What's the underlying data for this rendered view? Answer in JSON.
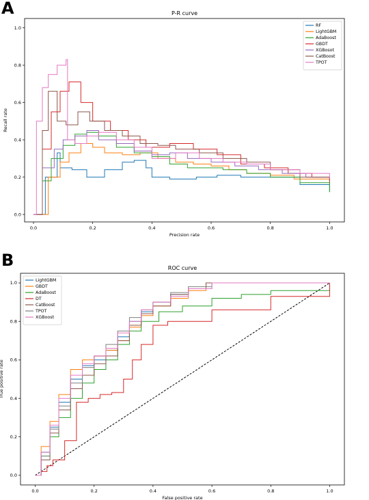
{
  "chart_data": [
    {
      "panel_label": "A",
      "type": "line",
      "title": "P-R curve",
      "xlabel": "Precision rate",
      "ylabel": "Recall rate",
      "xlim": [
        -0.03,
        1.05
      ],
      "ylim": [
        -0.04,
        1.05
      ],
      "xticks": [
        0.0,
        0.2,
        0.4,
        0.6,
        0.8,
        1.0
      ],
      "yticks": [
        0.0,
        0.2,
        0.4,
        0.6,
        0.8,
        1.0
      ],
      "xtick_labels": [
        "0.0",
        "0.2",
        "0.4",
        "0.6",
        "0.8",
        "1.0"
      ],
      "ytick_labels": [
        "0.0",
        "0.2",
        "0.4",
        "0.6",
        "0.8",
        "1.0"
      ],
      "grid": false,
      "legend_position": "top-right",
      "series": [
        {
          "name": "RF",
          "color": "#1f77b4",
          "x": [
            0.0,
            0.04,
            0.08,
            0.09,
            0.12,
            0.13,
            0.18,
            0.24,
            0.3,
            0.34,
            0.38,
            0.4,
            0.46,
            0.55,
            0.62,
            0.7,
            0.8,
            0.9,
            1.0
          ],
          "y": [
            0.0,
            0.2,
            0.33,
            0.25,
            0.25,
            0.24,
            0.2,
            0.24,
            0.28,
            0.29,
            0.25,
            0.2,
            0.19,
            0.2,
            0.21,
            0.2,
            0.2,
            0.16,
            0.12
          ]
        },
        {
          "name": "LightGBM",
          "color": "#ff7f0e",
          "x": [
            0.0,
            0.05,
            0.09,
            0.12,
            0.16,
            0.2,
            0.24,
            0.3,
            0.36,
            0.42,
            0.48,
            0.54,
            0.6,
            0.66,
            0.72,
            0.8,
            0.88,
            1.0
          ],
          "y": [
            0.0,
            0.2,
            0.28,
            0.33,
            0.38,
            0.36,
            0.33,
            0.32,
            0.33,
            0.3,
            0.28,
            0.27,
            0.26,
            0.24,
            0.22,
            0.21,
            0.19,
            0.16
          ]
        },
        {
          "name": "AdaBoost",
          "color": "#2ca02c",
          "x": [
            0.0,
            0.03,
            0.06,
            0.1,
            0.14,
            0.18,
            0.22,
            0.28,
            0.34,
            0.4,
            0.46,
            0.52,
            0.58,
            0.64,
            0.72,
            0.8,
            0.9,
            1.0
          ],
          "y": [
            0.0,
            0.18,
            0.3,
            0.37,
            0.43,
            0.44,
            0.42,
            0.36,
            0.33,
            0.31,
            0.27,
            0.25,
            0.25,
            0.24,
            0.22,
            0.2,
            0.17,
            0.12
          ]
        },
        {
          "name": "GBDT",
          "color": "#d62728",
          "x": [
            0.0,
            0.03,
            0.06,
            0.09,
            0.12,
            0.16,
            0.2,
            0.26,
            0.32,
            0.38,
            0.46,
            0.54,
            0.62,
            0.7,
            0.78,
            0.86,
            0.94,
            1.0
          ],
          "y": [
            0.0,
            0.35,
            0.55,
            0.66,
            0.71,
            0.6,
            0.5,
            0.45,
            0.4,
            0.36,
            0.38,
            0.35,
            0.32,
            0.27,
            0.25,
            0.22,
            0.2,
            0.18
          ]
        },
        {
          "name": "XGBosot",
          "color": "#9467bd",
          "x": [
            0.0,
            0.03,
            0.07,
            0.1,
            0.14,
            0.18,
            0.22,
            0.28,
            0.34,
            0.4,
            0.46,
            0.52,
            0.6,
            0.68,
            0.76,
            0.84,
            0.92,
            1.0
          ],
          "y": [
            0.0,
            0.25,
            0.35,
            0.4,
            0.42,
            0.45,
            0.4,
            0.38,
            0.34,
            0.32,
            0.33,
            0.3,
            0.28,
            0.26,
            0.24,
            0.22,
            0.2,
            0.19
          ]
        },
        {
          "name": "CatBoost",
          "color": "#8c564b",
          "x": [
            0.0,
            0.03,
            0.05,
            0.08,
            0.11,
            0.15,
            0.19,
            0.24,
            0.3,
            0.36,
            0.42,
            0.48,
            0.56,
            0.64,
            0.72,
            0.8,
            0.9,
            1.0
          ],
          "y": [
            0.0,
            0.45,
            0.66,
            0.5,
            0.48,
            0.55,
            0.5,
            0.45,
            0.42,
            0.38,
            0.37,
            0.35,
            0.33,
            0.3,
            0.28,
            0.24,
            0.2,
            0.17
          ]
        },
        {
          "name": "TPOT",
          "color": "#e377c2",
          "x": [
            0.0,
            0.01,
            0.03,
            0.05,
            0.08,
            0.11,
            0.115,
            0.14,
            0.18,
            0.22,
            0.28,
            0.34,
            0.4,
            0.48,
            0.56,
            0.64,
            0.72,
            0.8,
            0.9,
            1.0
          ],
          "y": [
            0.0,
            0.5,
            0.68,
            0.75,
            0.8,
            0.83,
            0.4,
            0.38,
            0.42,
            0.44,
            0.4,
            0.36,
            0.3,
            0.33,
            0.3,
            0.28,
            0.27,
            0.24,
            0.22,
            0.19
          ]
        }
      ]
    },
    {
      "panel_label": "B",
      "type": "line",
      "title": "ROC curve",
      "xlabel": "False positive rate",
      "ylabel": "True positive rate",
      "xlim": [
        -0.05,
        1.05
      ],
      "ylim": [
        -0.05,
        1.05
      ],
      "xticks": [
        0.0,
        0.2,
        0.4,
        0.6,
        0.8,
        1.0
      ],
      "yticks": [
        0.0,
        0.2,
        0.4,
        0.6,
        0.8,
        1.0
      ],
      "xtick_labels": [
        "0.0",
        "0.2",
        "0.4",
        "0.6",
        "0.8",
        "1.0"
      ],
      "ytick_labels": [
        "0.0",
        "0.2",
        "0.4",
        "0.6",
        "0.8",
        "1.0"
      ],
      "grid": false,
      "legend_position": "top-left",
      "diagonal": {
        "x": [
          0,
          1
        ],
        "y": [
          0,
          1
        ],
        "color": "#000000",
        "style": "dashed"
      },
      "series": [
        {
          "name": "LightGBM",
          "color": "#1f77b4",
          "x": [
            0.0,
            0.02,
            0.05,
            0.08,
            0.12,
            0.16,
            0.2,
            0.24,
            0.28,
            0.32,
            0.36,
            0.4,
            0.46,
            0.52,
            0.6,
            0.7,
            1.0
          ],
          "y": [
            0.0,
            0.12,
            0.25,
            0.38,
            0.5,
            0.57,
            0.6,
            0.65,
            0.72,
            0.8,
            0.85,
            0.9,
            0.94,
            0.97,
            1.0,
            1.0,
            1.0
          ]
        },
        {
          "name": "GBDT",
          "color": "#ff7f0e",
          "x": [
            0.0,
            0.02,
            0.05,
            0.08,
            0.12,
            0.16,
            0.2,
            0.24,
            0.28,
            0.32,
            0.36,
            0.4,
            0.46,
            0.52,
            0.58,
            0.7,
            1.0
          ],
          "y": [
            0.0,
            0.15,
            0.28,
            0.42,
            0.55,
            0.6,
            0.62,
            0.65,
            0.7,
            0.77,
            0.83,
            0.88,
            0.92,
            0.96,
            1.0,
            1.0,
            1.0
          ]
        },
        {
          "name": "AdaBoost",
          "color": "#2ca02c",
          "x": [
            0.0,
            0.02,
            0.05,
            0.08,
            0.12,
            0.16,
            0.2,
            0.24,
            0.28,
            0.32,
            0.36,
            0.42,
            0.5,
            0.6,
            0.7,
            0.8,
            1.0
          ],
          "y": [
            0.0,
            0.1,
            0.2,
            0.3,
            0.4,
            0.48,
            0.55,
            0.6,
            0.68,
            0.75,
            0.8,
            0.85,
            0.88,
            0.92,
            0.94,
            0.96,
            1.0
          ]
        },
        {
          "name": "DT",
          "color": "#d62728",
          "x": [
            0.0,
            0.02,
            0.04,
            0.06,
            0.1,
            0.14,
            0.18,
            0.22,
            0.26,
            0.3,
            0.33,
            0.36,
            0.4,
            0.45,
            0.6,
            0.8,
            1.0
          ],
          "y": [
            0.0,
            0.02,
            0.05,
            0.08,
            0.18,
            0.38,
            0.4,
            0.42,
            0.43,
            0.5,
            0.6,
            0.68,
            0.78,
            0.8,
            0.86,
            0.93,
            1.0
          ]
        },
        {
          "name": "CatBoost",
          "color": "#8c564b",
          "x": [
            0.0,
            0.02,
            0.05,
            0.08,
            0.12,
            0.16,
            0.2,
            0.24,
            0.28,
            0.32,
            0.36,
            0.4,
            0.46,
            0.52,
            0.58,
            0.7,
            1.0
          ],
          "y": [
            0.0,
            0.08,
            0.22,
            0.34,
            0.45,
            0.52,
            0.58,
            0.62,
            0.7,
            0.78,
            0.84,
            0.88,
            0.94,
            0.97,
            1.0,
            1.0,
            1.0
          ]
        },
        {
          "name": "TPOT",
          "color": "#7f7f7f",
          "x": [
            0.0,
            0.02,
            0.05,
            0.08,
            0.12,
            0.16,
            0.2,
            0.24,
            0.28,
            0.32,
            0.36,
            0.4,
            0.46,
            0.52,
            0.6,
            0.7,
            1.0
          ],
          "y": [
            0.0,
            0.1,
            0.24,
            0.36,
            0.48,
            0.56,
            0.62,
            0.68,
            0.75,
            0.82,
            0.86,
            0.9,
            0.95,
            0.98,
            1.0,
            1.0,
            1.0
          ]
        },
        {
          "name": "XGBoost",
          "color": "#e377c2",
          "x": [
            0.0,
            0.02,
            0.05,
            0.08,
            0.12,
            0.16,
            0.2,
            0.24,
            0.28,
            0.32,
            0.36,
            0.4,
            0.46,
            0.52,
            0.6,
            0.8,
            1.0
          ],
          "y": [
            0.0,
            0.12,
            0.26,
            0.4,
            0.52,
            0.58,
            0.62,
            0.66,
            0.74,
            0.8,
            0.86,
            0.9,
            0.93,
            0.97,
            1.0,
            1.0,
            1.0
          ]
        }
      ]
    }
  ]
}
